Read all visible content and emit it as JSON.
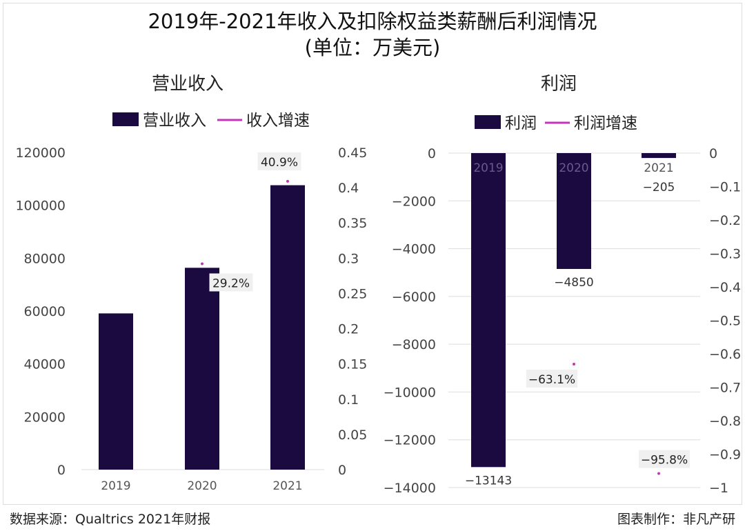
{
  "title": "2019年-2021年收入及扣除权益类薪酬后利润情况",
  "subtitle": "(单位：万美元)",
  "colors": {
    "bar": "#1b0a3f",
    "line": "#c236b8"
  },
  "chart_data": [
    {
      "type": "bar+line",
      "title": "营业收入",
      "categories": [
        "2019",
        "2020",
        "2021"
      ],
      "series": [
        {
          "name": "营业收入",
          "type": "bar",
          "axis": "left",
          "values": [
            59100,
            76350,
            107590
          ]
        },
        {
          "name": "收入增速",
          "type": "line",
          "axis": "right",
          "values": [
            null,
            0.292,
            0.409
          ],
          "labels": [
            "",
            "29.2%",
            "40.9%"
          ]
        }
      ],
      "ylim_left": [
        0,
        120000
      ],
      "yticks_left": [
        "0",
        "20000",
        "40000",
        "60000",
        "80000",
        "100000",
        "120000"
      ],
      "ylim_right": [
        0,
        0.45
      ],
      "yticks_right": [
        "0",
        "0.05",
        "0.1",
        "0.15",
        "0.2",
        "0.25",
        "0.3",
        "0.35",
        "0.4",
        "0.45"
      ],
      "grid": false,
      "legend": "top"
    },
    {
      "type": "bar+line",
      "title": "利润",
      "categories": [
        "2019",
        "2020",
        "2021"
      ],
      "series": [
        {
          "name": "利润",
          "type": "bar",
          "axis": "left",
          "values": [
            -13143,
            -4850,
            -205
          ],
          "labels": [
            "−13143",
            "−4850",
            "−205"
          ]
        },
        {
          "name": "利润增速",
          "type": "line",
          "axis": "right",
          "values": [
            null,
            -0.631,
            -0.958
          ],
          "labels": [
            "",
            "−63.1%",
            "−95.8%"
          ]
        }
      ],
      "ylim_left": [
        -14000,
        0
      ],
      "yticks_left": [
        "0",
        "−2000",
        "−4000",
        "−6000",
        "−8000",
        "−10000",
        "−12000",
        "−14000"
      ],
      "ylim_right": [
        -1,
        0
      ],
      "yticks_right": [
        "0",
        "−0.1",
        "−0.2",
        "−0.3",
        "−0.4",
        "−0.5",
        "−0.6",
        "−0.7",
        "−0.8",
        "−0.9",
        "−1"
      ],
      "grid": true,
      "legend": "top"
    }
  ],
  "footer": {
    "source": "数据来源：Qualtrics 2021年财报",
    "credit": "图表制作：非凡产研"
  }
}
